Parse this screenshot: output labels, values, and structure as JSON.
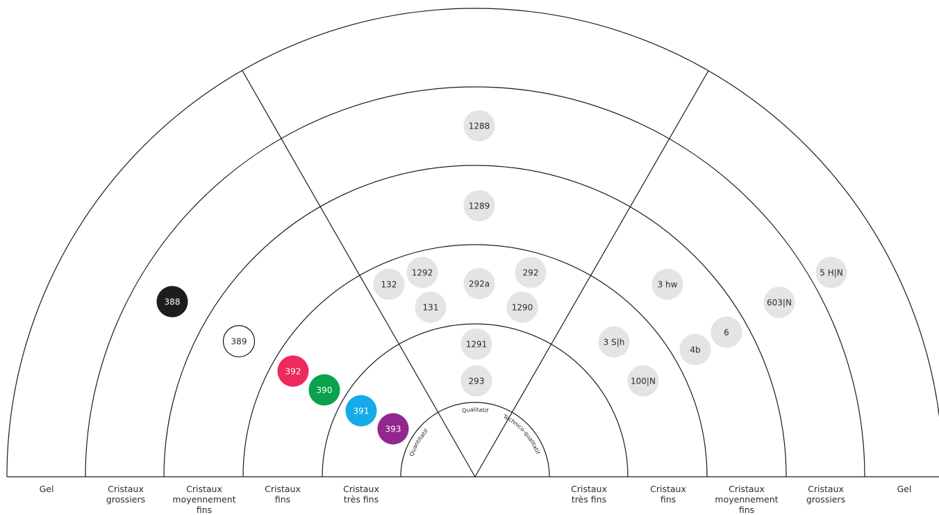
{
  "center_labels": {
    "left": "Quantitatif",
    "top": "Qualitatif",
    "right": "Technico-qualitatif"
  },
  "zones_left": [
    {
      "key": "gel",
      "lines": [
        "Gel"
      ]
    },
    {
      "key": "grossiers",
      "lines": [
        "Cristaux",
        "grossiers"
      ]
    },
    {
      "key": "moyennement",
      "lines": [
        "Cristaux",
        "moyennement",
        "fins"
      ]
    },
    {
      "key": "fins",
      "lines": [
        "Cristaux",
        "fins"
      ]
    },
    {
      "key": "tres-fins",
      "lines": [
        "Cristaux",
        "très fins"
      ]
    }
  ],
  "zones_right": [
    {
      "key": "tres-fins",
      "lines": [
        "Cristaux",
        "très fins"
      ]
    },
    {
      "key": "fins",
      "lines": [
        "Cristaux",
        "fins"
      ]
    },
    {
      "key": "moyennement",
      "lines": [
        "Cristaux",
        "moyennement",
        "fins"
      ]
    },
    {
      "key": "grossiers",
      "lines": [
        "Cristaux",
        "grossiers"
      ]
    },
    {
      "key": "gel",
      "lines": [
        "Gel"
      ]
    }
  ],
  "products": [
    {
      "label": "1288",
      "style": "grey"
    },
    {
      "label": "1289",
      "style": "grey"
    },
    {
      "label": "132",
      "style": "grey"
    },
    {
      "label": "1292",
      "style": "grey"
    },
    {
      "label": "292a",
      "style": "grey"
    },
    {
      "label": "292",
      "style": "grey"
    },
    {
      "label": "131",
      "style": "grey"
    },
    {
      "label": "1290",
      "style": "grey"
    },
    {
      "label": "1291",
      "style": "grey"
    },
    {
      "label": "293",
      "style": "grey"
    },
    {
      "label": "3 hw",
      "style": "grey"
    },
    {
      "label": "5 H|N",
      "style": "grey"
    },
    {
      "label": "603|N",
      "style": "grey"
    },
    {
      "label": "6",
      "style": "grey"
    },
    {
      "label": "3 S|h",
      "style": "grey"
    },
    {
      "label": "4b",
      "style": "grey"
    },
    {
      "label": "100|N",
      "style": "grey"
    },
    {
      "label": "388",
      "style": "black"
    },
    {
      "label": "389",
      "style": "outline"
    },
    {
      "label": "392",
      "style": "red"
    },
    {
      "label": "390",
      "style": "green"
    },
    {
      "label": "391",
      "style": "blue"
    },
    {
      "label": "393",
      "style": "purple"
    }
  ],
  "colors": {
    "grey": "#e4e4e6",
    "black": "#1e1c1c",
    "outline": "#ffffff",
    "red": "#ee2a5c",
    "green": "#0aa24b",
    "blue": "#14abe8",
    "purple": "#93278f",
    "dark_text": "#2a2a2a",
    "light_text": "#ffffff"
  }
}
